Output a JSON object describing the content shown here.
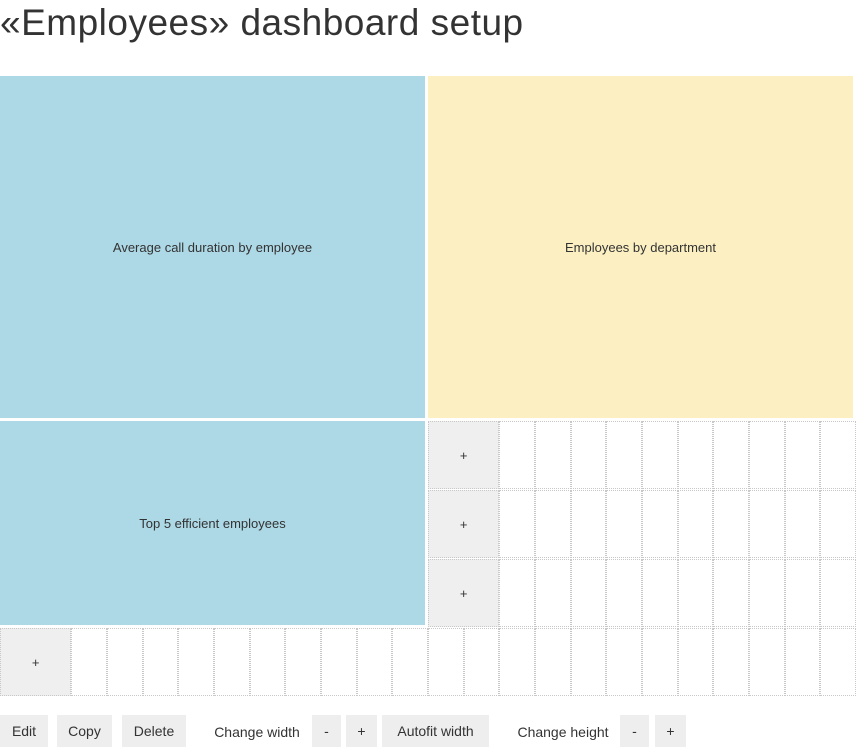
{
  "header": {
    "title": "«Employees» dashboard setup"
  },
  "widgets": [
    {
      "label": "Average call duration by employee",
      "color": "#add8e6"
    },
    {
      "label": "Employees by department",
      "color": "#fcf0c3"
    },
    {
      "label": "Top 5 efficient employees",
      "color": "#add8e6"
    }
  ],
  "add_cells": [
    "+",
    "+",
    "+",
    "+"
  ],
  "toolbar": [
    "Edit",
    "Copy",
    "Delete",
    "Change width",
    "-",
    "+",
    "Autofit width",
    "Change height",
    "-",
    "+"
  ]
}
